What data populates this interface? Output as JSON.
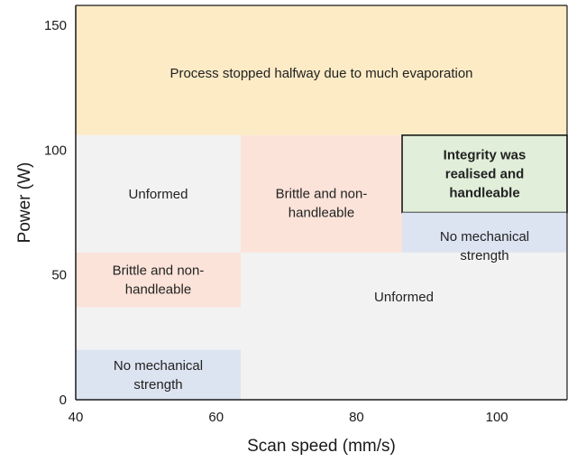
{
  "chart_data": {
    "type": "region_map",
    "title": "",
    "xlabel": "Scan speed (mm/s)",
    "ylabel": "Power (W)",
    "xlim": [
      40,
      110
    ],
    "ylim": [
      0,
      158
    ],
    "xticks": [
      40,
      60,
      80,
      100
    ],
    "yticks": [
      0,
      50,
      100,
      150
    ],
    "grid": false,
    "legend": "none",
    "regions": [
      {
        "label": "Process stopped halfway due to much evaporation",
        "x0": 40,
        "x1": 110,
        "y0": 106,
        "y1": 158,
        "color": "#fcebc5",
        "bold": false,
        "border": false
      },
      {
        "label": "Unformed",
        "x0": 40,
        "x1": 63.5,
        "y0": 59,
        "y1": 106,
        "color": "#f2f2f2",
        "bold": false,
        "border": false
      },
      {
        "label": "Brittle and non-handleable",
        "x0": 63.5,
        "x1": 86.5,
        "y0": 59,
        "y1": 106,
        "color": "#fbe3d9",
        "bold": false,
        "border": false
      },
      {
        "label": "Integrity was realised and handleable",
        "x0": 86.5,
        "x1": 110,
        "y0": 75,
        "y1": 106,
        "color": "#e1eed9",
        "bold": true,
        "border": true
      },
      {
        "label": "No mechanical strength",
        "x0": 86.5,
        "x1": 110,
        "y0": 44,
        "y1": 75,
        "color": "#dce3f1",
        "bold": false,
        "border": false
      },
      {
        "label": "Brittle and non-handleable",
        "x0": 40,
        "x1": 63.5,
        "y0": 37,
        "y1": 59,
        "color": "#fbe3d9",
        "bold": false,
        "border": false
      },
      {
        "label": "Unformed",
        "x0": 63.5,
        "x1": 110,
        "y0": 0,
        "y1": 59,
        "color": "#f2f2f2",
        "bold": false,
        "border": false
      },
      {
        "label": "No mechanical strength",
        "x0": 40,
        "x1": 63.5,
        "y0": 0,
        "y1": 20,
        "color": "#dce3f1",
        "bold": false,
        "border": false
      }
    ],
    "gap_regions": [
      {
        "x0": 40,
        "x1": 63.5,
        "y0": 20,
        "y1": 37,
        "color": "#f2f2f2"
      },
      {
        "x0": 86.5,
        "x1": 110,
        "y0": 59,
        "y1": 44,
        "color": "#f2f2f2"
      }
    ]
  }
}
